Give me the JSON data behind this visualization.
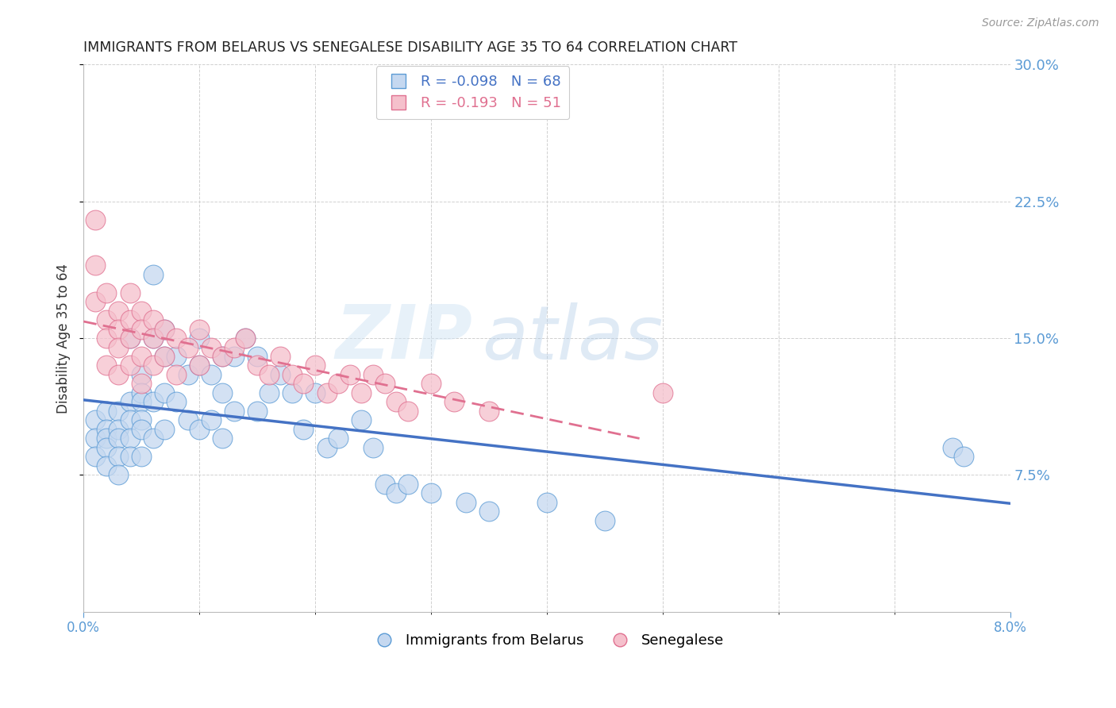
{
  "title": "IMMIGRANTS FROM BELARUS VS SENEGALESE DISABILITY AGE 35 TO 64 CORRELATION CHART",
  "source": "Source: ZipAtlas.com",
  "legend_label1": "Immigrants from Belarus",
  "legend_label2": "Senegalese",
  "ylabel": "Disability Age 35 to 64",
  "r1": "-0.098",
  "n1": "68",
  "r2": "-0.193",
  "n2": "51",
  "xlim": [
    0.0,
    0.08
  ],
  "ylim": [
    0.0,
    0.3
  ],
  "xticks": [
    0.0,
    0.08
  ],
  "yticks_right": [
    0.075,
    0.15,
    0.225,
    0.3
  ],
  "color_blue_fill": "#c5d8f0",
  "color_blue_edge": "#5b9bd5",
  "color_pink_fill": "#f5c0cc",
  "color_pink_edge": "#e07090",
  "color_line_blue": "#4472c4",
  "color_line_pink": "#e07090",
  "color_axis_right": "#5b9bd5",
  "color_axis_bottom": "#5b9bd5",
  "background": "#ffffff",
  "grid_color": "#d0d0d0",
  "watermark_zip": "ZIP",
  "watermark_atlas": "atlas",
  "blue_x": [
    0.001,
    0.001,
    0.001,
    0.002,
    0.002,
    0.002,
    0.002,
    0.002,
    0.003,
    0.003,
    0.003,
    0.003,
    0.003,
    0.004,
    0.004,
    0.004,
    0.004,
    0.004,
    0.005,
    0.005,
    0.005,
    0.005,
    0.005,
    0.005,
    0.006,
    0.006,
    0.006,
    0.006,
    0.007,
    0.007,
    0.007,
    0.007,
    0.008,
    0.008,
    0.009,
    0.009,
    0.01,
    0.01,
    0.01,
    0.011,
    0.011,
    0.012,
    0.012,
    0.012,
    0.013,
    0.013,
    0.014,
    0.015,
    0.015,
    0.016,
    0.017,
    0.018,
    0.019,
    0.02,
    0.021,
    0.022,
    0.024,
    0.025,
    0.026,
    0.027,
    0.028,
    0.03,
    0.033,
    0.035,
    0.04,
    0.045,
    0.075,
    0.076
  ],
  "blue_y": [
    0.105,
    0.095,
    0.085,
    0.11,
    0.1,
    0.095,
    0.09,
    0.08,
    0.11,
    0.1,
    0.095,
    0.085,
    0.075,
    0.15,
    0.115,
    0.105,
    0.095,
    0.085,
    0.13,
    0.12,
    0.115,
    0.105,
    0.1,
    0.085,
    0.185,
    0.15,
    0.115,
    0.095,
    0.155,
    0.14,
    0.12,
    0.1,
    0.14,
    0.115,
    0.13,
    0.105,
    0.15,
    0.135,
    0.1,
    0.13,
    0.105,
    0.14,
    0.12,
    0.095,
    0.14,
    0.11,
    0.15,
    0.14,
    0.11,
    0.12,
    0.13,
    0.12,
    0.1,
    0.12,
    0.09,
    0.095,
    0.105,
    0.09,
    0.07,
    0.065,
    0.07,
    0.065,
    0.06,
    0.055,
    0.06,
    0.05,
    0.09,
    0.085
  ],
  "pink_x": [
    0.001,
    0.001,
    0.001,
    0.002,
    0.002,
    0.002,
    0.002,
    0.003,
    0.003,
    0.003,
    0.003,
    0.004,
    0.004,
    0.004,
    0.004,
    0.005,
    0.005,
    0.005,
    0.005,
    0.006,
    0.006,
    0.006,
    0.007,
    0.007,
    0.008,
    0.008,
    0.009,
    0.01,
    0.01,
    0.011,
    0.012,
    0.013,
    0.014,
    0.015,
    0.016,
    0.017,
    0.018,
    0.019,
    0.02,
    0.021,
    0.022,
    0.023,
    0.024,
    0.025,
    0.026,
    0.027,
    0.028,
    0.03,
    0.032,
    0.035,
    0.05
  ],
  "pink_y": [
    0.215,
    0.19,
    0.17,
    0.175,
    0.16,
    0.15,
    0.135,
    0.165,
    0.155,
    0.145,
    0.13,
    0.175,
    0.16,
    0.15,
    0.135,
    0.165,
    0.155,
    0.14,
    0.125,
    0.16,
    0.15,
    0.135,
    0.155,
    0.14,
    0.15,
    0.13,
    0.145,
    0.155,
    0.135,
    0.145,
    0.14,
    0.145,
    0.15,
    0.135,
    0.13,
    0.14,
    0.13,
    0.125,
    0.135,
    0.12,
    0.125,
    0.13,
    0.12,
    0.13,
    0.125,
    0.115,
    0.11,
    0.125,
    0.115,
    0.11,
    0.12
  ]
}
